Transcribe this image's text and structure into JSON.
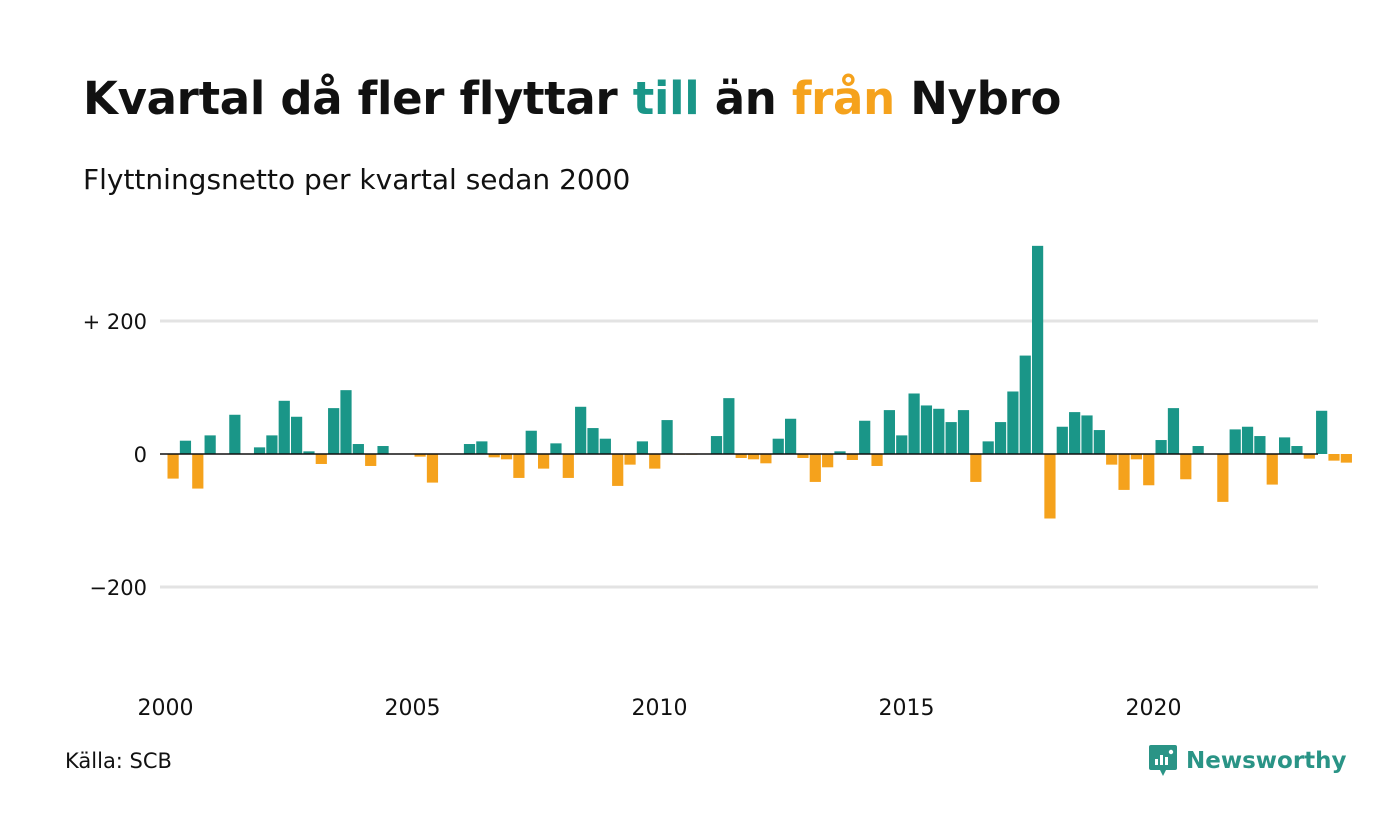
{
  "title": {
    "part1": "Kvartal då fler flyttar ",
    "positive_word": "till",
    "part2": " än ",
    "negative_word": "från",
    "part3": " Nybro"
  },
  "subtitle": "Flyttningsnetto per kvartal sedan 2000",
  "source": "Källa: SCB",
  "brand": {
    "name": "Newsworthy",
    "icon": "newsworthy-logo-icon"
  },
  "colors": {
    "positive": "#1a9688",
    "negative": "#f5a21c",
    "grid": "#e3e3e3",
    "zero_line": "#111111"
  },
  "chart_data": {
    "type": "bar",
    "title": "Kvartal då fler flyttar till än från Nybro",
    "subtitle": "Flyttningsnetto per kvartal sedan 2000",
    "xlabel": "",
    "ylabel": "",
    "x_start_year": 2000,
    "quarters_per_year": 4,
    "x_ticks": [
      "2000",
      "2005",
      "2010",
      "2015",
      "2020"
    ],
    "y_ticks": [
      {
        "value": 200,
        "label": "+ 200"
      },
      {
        "value": 0,
        "label": "0"
      },
      {
        "value": -200,
        "label": "−200"
      }
    ],
    "ylim": [
      -320,
      320
    ],
    "grid": true,
    "legend": "none",
    "values": [
      -37,
      20,
      -52,
      28,
      0,
      59,
      0,
      10,
      28,
      80,
      56,
      4,
      -15,
      69,
      96,
      15,
      -18,
      12,
      0,
      0,
      -4,
      -43,
      0,
      0,
      15,
      19,
      -5,
      -8,
      -36,
      35,
      -22,
      16,
      -36,
      71,
      39,
      23,
      -48,
      -16,
      19,
      -22,
      51,
      -1,
      -1,
      0,
      27,
      84,
      -6,
      -8,
      -14,
      23,
      53,
      -6,
      -42,
      -20,
      4,
      -9,
      50,
      -18,
      66,
      28,
      91,
      73,
      68,
      48,
      66,
      -42,
      19,
      48,
      94,
      148,
      313,
      -97,
      41,
      63,
      58,
      36,
      -16,
      -54,
      -8,
      -47,
      21,
      69,
      -38,
      12,
      0,
      -72,
      37,
      41,
      27,
      -46,
      25,
      12,
      -7,
      65,
      -10,
      -13
    ]
  }
}
